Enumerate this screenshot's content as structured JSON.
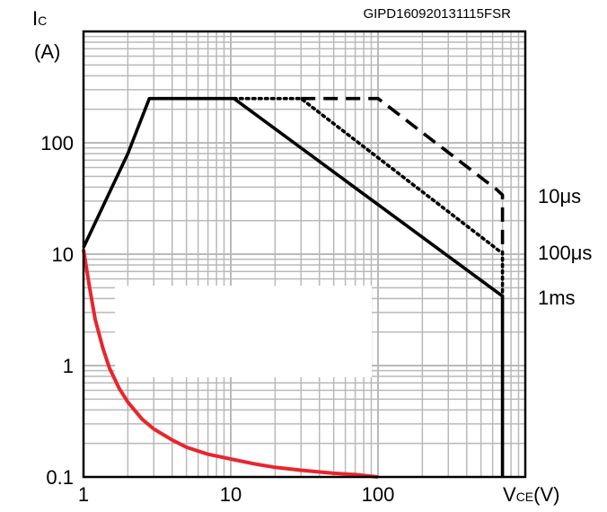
{
  "chart_data": {
    "type": "line",
    "title": "",
    "figure_code": "GIPD160920131115FSR",
    "xscale": "log",
    "yscale": "log",
    "xlim": [
      1,
      1000
    ],
    "ylim": [
      0.1,
      1000
    ],
    "x_ticks": [
      {
        "value": 1,
        "label": "1"
      },
      {
        "value": 10,
        "label": "10"
      },
      {
        "value": 100,
        "label": "100"
      }
    ],
    "y_ticks": [
      {
        "value": 0.1,
        "label": "0.1"
      },
      {
        "value": 1,
        "label": "1"
      },
      {
        "value": 10,
        "label": "10"
      },
      {
        "value": 100,
        "label": "100"
      }
    ],
    "xlabel": {
      "main": "V",
      "sub": "CE",
      "unit": "(V)"
    },
    "ylabel": {
      "main": "I",
      "sub": "C",
      "unit": "(A)"
    },
    "grid": true,
    "series": [
      {
        "name": "1ms",
        "label": "1ms",
        "style": "solid",
        "color": "#000000",
        "points": [
          [
            1,
            11.5
          ],
          [
            2,
            80
          ],
          [
            2.8,
            250
          ],
          [
            10.5,
            250
          ],
          [
            700,
            4.2
          ],
          [
            700,
            0.1
          ]
        ]
      },
      {
        "name": "100us",
        "label": "100μs",
        "style": "dotted",
        "color": "#000000",
        "points": [
          [
            10.5,
            250
          ],
          [
            30,
            250
          ],
          [
            680,
            10.5
          ],
          [
            700,
            10.5
          ],
          [
            700,
            4.2
          ]
        ]
      },
      {
        "name": "10us",
        "label": "10μs",
        "style": "dashed",
        "color": "#000000",
        "points": [
          [
            30,
            250
          ],
          [
            100,
            250
          ],
          [
            640,
            38
          ],
          [
            700,
            34
          ],
          [
            700,
            10.5
          ]
        ]
      },
      {
        "name": "dc-curve",
        "label": "",
        "style": "solid",
        "color": "#e8262d",
        "points": [
          [
            1,
            11
          ],
          [
            1.1,
            5
          ],
          [
            1.2,
            2.6
          ],
          [
            1.35,
            1.45
          ],
          [
            1.5,
            0.95
          ],
          [
            1.75,
            0.62
          ],
          [
            2,
            0.47
          ],
          [
            2.5,
            0.33
          ],
          [
            3,
            0.27
          ],
          [
            4,
            0.215
          ],
          [
            5,
            0.185
          ],
          [
            7,
            0.16
          ],
          [
            10,
            0.145
          ],
          [
            15,
            0.13
          ],
          [
            20,
            0.122
          ],
          [
            30,
            0.115
          ],
          [
            50,
            0.108
          ],
          [
            70,
            0.105
          ],
          [
            100,
            0.1
          ]
        ]
      }
    ],
    "legend_placement": "right"
  }
}
